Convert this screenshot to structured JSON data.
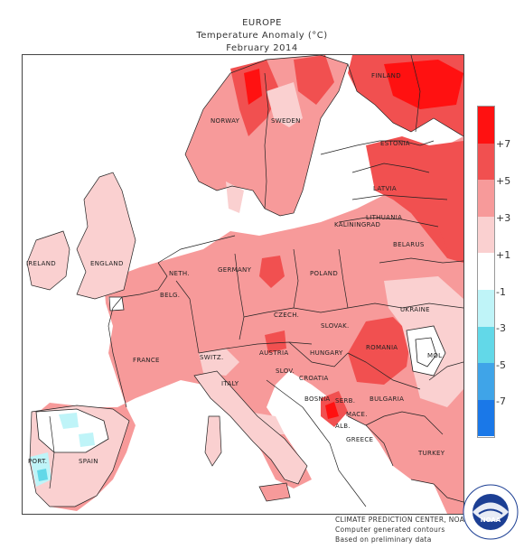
{
  "header": {
    "region": "EUROPE",
    "subtitle": "Temperature Anomaly (°C)",
    "period": "February 2014"
  },
  "colors": {
    "c7": "#ff1111",
    "c5": "#f15050",
    "c3": "#f79a9a",
    "c1": "#fad0d0",
    "cm1": "#ffffff",
    "cm3": "#bff4f8",
    "cm5": "#62d8e8",
    "cm7": "#3fa4e8",
    "cm9": "#1a78e8",
    "outline": "#222222",
    "contour": "#444444"
  },
  "legend": {
    "ticks": [
      "+7",
      "+5",
      "+3",
      "+1",
      "-1",
      "-3",
      "-5",
      "-7"
    ]
  },
  "country_labels": {
    "finland": "FINLAND",
    "norway": "NORWAY",
    "sweden": "SWEDEN",
    "estonia": "ESTONIA",
    "latvia": "LATVIA",
    "lithuania": "LITHUANIA",
    "kaliningrad": "KALININGRAD",
    "belarus": "BELARUS",
    "ireland": "IRELAND",
    "england": "ENGLAND",
    "neth": "NETH.",
    "belg": "BELG.",
    "germany": "GERMANY",
    "poland": "POLAND",
    "czech": "CZECH.",
    "slovak": "SLOVAK.",
    "ukraine": "UKRAINE",
    "austria": "AUSTRIA",
    "switz": "SWITZ.",
    "france": "FRANCE",
    "hungary": "HUNGARY",
    "moldova": "MOL.",
    "romania": "ROMANIA",
    "slov": "SLOV.",
    "croatia": "CROATIA",
    "italy": "ITALY",
    "bosnia": "BOSNIA",
    "serb": "SERB.",
    "bulgaria": "BULGARIA",
    "mace": "MACE.",
    "alb": "ALB.",
    "greece": "GREECE",
    "turkey": "TURKEY",
    "port": "PORT.",
    "spain": "SPAIN"
  },
  "credits": {
    "line1": "CLIMATE PREDICTION CENTER, NOAA",
    "line2": "Computer generated contours",
    "line3": "Based on preliminary data"
  },
  "logo": {
    "text": "NOAA",
    "ring_text": "NATIONAL OCEANIC AND ATMOSPHERIC ADMINISTRATION · U.S. DEPARTMENT OF COMMERCE"
  }
}
